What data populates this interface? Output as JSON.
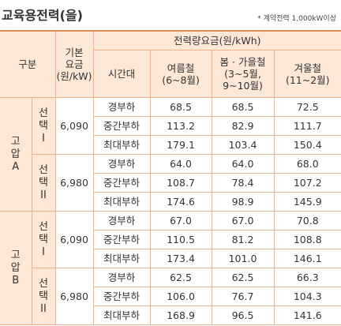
{
  "title": "교육용전력(을)",
  "note": "* 계약전력 1,000kW이상",
  "header": {
    "category": "구분",
    "base_fee": [
      "기본",
      "요금",
      "(원/kW)"
    ],
    "energy_fee": "전력량요금(원/kWh)",
    "time_period": "시간대",
    "seasons": [
      [
        "여름철",
        "(6~8월)"
      ],
      [
        "봄 · 가을철",
        "(3~5월,",
        "9~10월)"
      ],
      [
        "겨울철",
        "(11~2월)"
      ]
    ]
  },
  "groups": [
    {
      "name": [
        "고",
        "압",
        "A"
      ],
      "options": [
        {
          "name": [
            "선",
            "택",
            "I"
          ],
          "base_fee": "6,090",
          "rows": [
            [
              "경부하",
              "68.5",
              "68.5",
              "72.5"
            ],
            [
              "중간부하",
              "113.2",
              "82.9",
              "111.7"
            ],
            [
              "최대부하",
              "179.1",
              "103.4",
              "150.4"
            ]
          ]
        },
        {
          "name": [
            "선",
            "택",
            "II"
          ],
          "base_fee": "6,980",
          "rows": [
            [
              "경부하",
              "64.0",
              "64.0",
              "68.0"
            ],
            [
              "중간부하",
              "108.7",
              "78.4",
              "107.2"
            ],
            [
              "최대부하",
              "174.6",
              "98.9",
              "145.9"
            ]
          ]
        }
      ]
    },
    {
      "name": [
        "고",
        "압",
        "B"
      ],
      "options": [
        {
          "name": [
            "선",
            "택",
            "I"
          ],
          "base_fee": "6,090",
          "rows": [
            [
              "경부하",
              "67.0",
              "67.0",
              "70.8"
            ],
            [
              "중간부하",
              "110.5",
              "81.2",
              "108.8"
            ],
            [
              "최대부하",
              "173.4",
              "101.0",
              "146.1"
            ]
          ]
        },
        {
          "name": [
            "선",
            "택",
            "II"
          ],
          "base_fee": "6,980",
          "rows": [
            [
              "경부하",
              "62.5",
              "62.5",
              "66.3"
            ],
            [
              "중간부하",
              "106.0",
              "76.7",
              "104.3"
            ],
            [
              "최대부하",
              "168.9",
              "96.5",
              "141.6"
            ]
          ]
        }
      ]
    }
  ]
}
